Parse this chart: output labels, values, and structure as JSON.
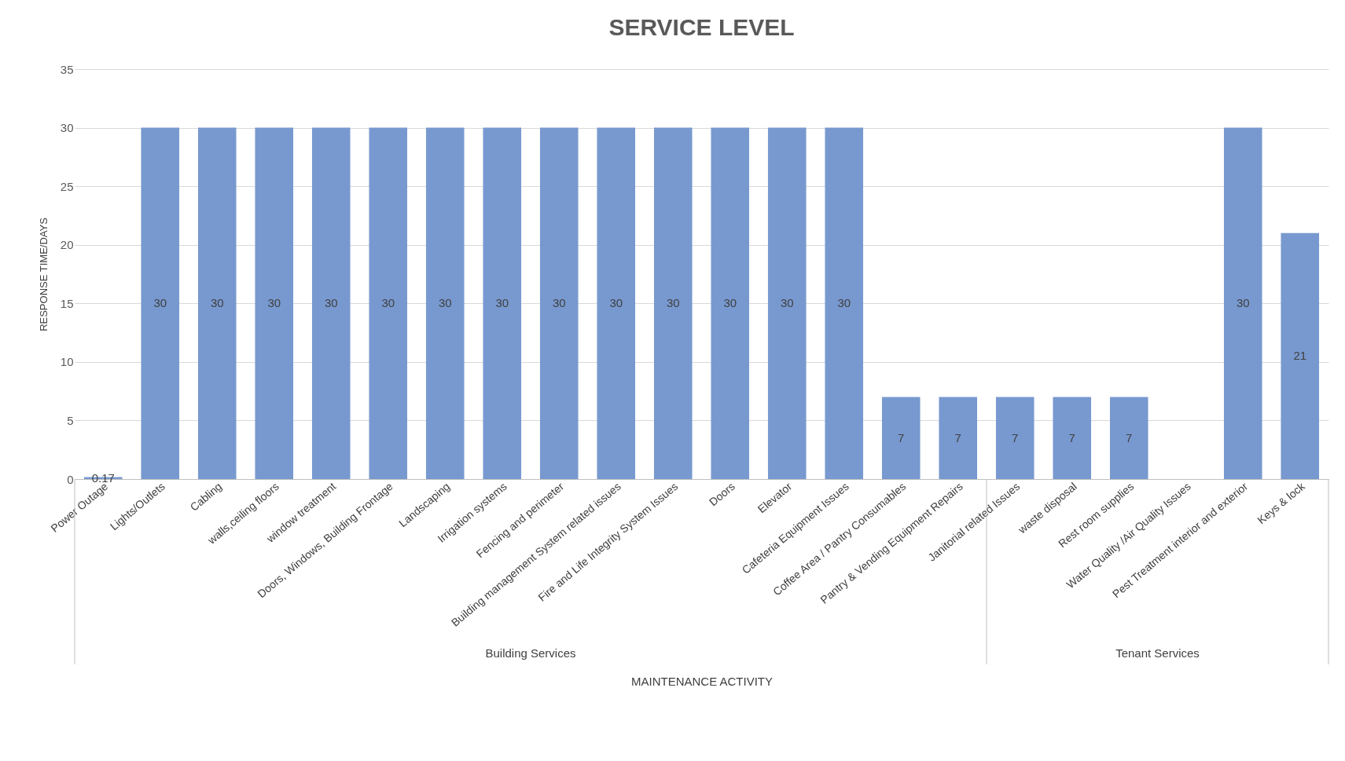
{
  "chart_data": {
    "type": "bar",
    "title": "SERVICE LEVEL",
    "xlabel": "MAINTENANCE ACTIVITY",
    "ylabel": "RESPONSE TIME/DAYS",
    "categories": [
      "Power Outage",
      "Lights/Outlets",
      "Cabling",
      "walls,ceiling floors",
      "window treatment",
      "Doors, Windows, Building Frontage",
      "Landscaping",
      "Irrigation systems",
      "Fencing and perimeter",
      "Building management System related issues",
      "Fire and Life Integrity System Issues",
      "Doors",
      "Elevator",
      "Cafeteria Equipment Issues",
      "Coffee Area / Pantry Consumables",
      "Pantry & Vending Equipment Repairs",
      "Janitorial related Issues",
      "waste disposal",
      "Rest room supplies",
      "Water Quality /Air Quality Issues",
      "Pest Treatment interior and exterior",
      "Keys & lock"
    ],
    "values": [
      0.17,
      30,
      30,
      30,
      30,
      30,
      30,
      30,
      30,
      30,
      30,
      30,
      30,
      30,
      7,
      7,
      7,
      7,
      7,
      null,
      30,
      21
    ],
    "color": "#7899cf",
    "ylim": [
      0,
      35
    ],
    "yticks": [
      0,
      5,
      10,
      15,
      20,
      25,
      30,
      35
    ],
    "grid": "y",
    "data_labels": true,
    "annotations": [
      "Building Services",
      "Tenant Services"
    ]
  }
}
